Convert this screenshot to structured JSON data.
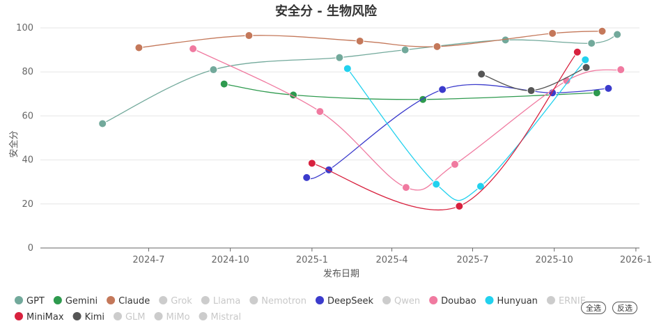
{
  "chart_data": {
    "type": "line",
    "title": "安全分 - 生物风险",
    "xlabel": "发布日期",
    "ylabel": "安全分",
    "ylim": [
      0,
      100
    ],
    "yticks": [
      0,
      20,
      40,
      60,
      80,
      100
    ],
    "xlim": [
      "2024-03-01",
      "2026-01-05"
    ],
    "xticks": [
      {
        "date": "2024-07-01",
        "label": "2024-7"
      },
      {
        "date": "2024-10-01",
        "label": "2024-10"
      },
      {
        "date": "2025-01-01",
        "label": "2025-1"
      },
      {
        "date": "2025-04-01",
        "label": "2025-4"
      },
      {
        "date": "2025-07-01",
        "label": "2025-7"
      },
      {
        "date": "2025-10-01",
        "label": "2025-10"
      },
      {
        "date": "2026-01-01",
        "label": "2026-1"
      }
    ],
    "series": [
      {
        "name": "GPT",
        "color": "#72a99b",
        "active": true,
        "points": [
          {
            "x": "2024-05-10",
            "y": 56.5
          },
          {
            "x": "2024-09-12",
            "y": 81
          },
          {
            "x": "2025-02-01",
            "y": 86.5
          },
          {
            "x": "2025-04-16",
            "y": 90
          },
          {
            "x": "2025-08-07",
            "y": 94.5
          },
          {
            "x": "2025-11-12",
            "y": 93
          },
          {
            "x": "2025-12-11",
            "y": 97
          }
        ]
      },
      {
        "name": "Gemini",
        "color": "#2e9a4e",
        "active": true,
        "points": [
          {
            "x": "2024-09-24",
            "y": 74.5
          },
          {
            "x": "2024-12-11",
            "y": 69.5
          },
          {
            "x": "2025-05-06",
            "y": 67.5
          },
          {
            "x": "2025-11-18",
            "y": 70.5
          }
        ]
      },
      {
        "name": "Claude",
        "color": "#c4785a",
        "active": true,
        "points": [
          {
            "x": "2024-06-20",
            "y": 91
          },
          {
            "x": "2024-10-22",
            "y": 96.5
          },
          {
            "x": "2025-02-24",
            "y": 94
          },
          {
            "x": "2025-05-22",
            "y": 91.5
          },
          {
            "x": "2025-09-29",
            "y": 97.5
          },
          {
            "x": "2025-11-24",
            "y": 98.5
          }
        ]
      },
      {
        "name": "Grok",
        "color": "#c8c8c8",
        "active": false,
        "points": []
      },
      {
        "name": "Llama",
        "color": "#c8c8c8",
        "active": false,
        "points": []
      },
      {
        "name": "Nemotron",
        "color": "#c8c8c8",
        "active": false,
        "points": []
      },
      {
        "name": "DeepSeek",
        "color": "#3b3bcc",
        "active": true,
        "points": [
          {
            "x": "2024-12-26",
            "y": 32
          },
          {
            "x": "2025-01-20",
            "y": 35.5
          },
          {
            "x": "2025-05-28",
            "y": 72
          },
          {
            "x": "2025-09-29",
            "y": 70.5
          },
          {
            "x": "2025-12-01",
            "y": 72.5
          }
        ]
      },
      {
        "name": "Qwen",
        "color": "#c8c8c8",
        "active": false,
        "points": []
      },
      {
        "name": "Doubao",
        "color": "#f07aa0",
        "active": true,
        "points": [
          {
            "x": "2024-08-20",
            "y": 90.5
          },
          {
            "x": "2025-01-10",
            "y": 62
          },
          {
            "x": "2025-04-17",
            "y": 27.5
          },
          {
            "x": "2025-06-11",
            "y": 38
          },
          {
            "x": "2025-10-15",
            "y": 76
          },
          {
            "x": "2025-12-15",
            "y": 81
          }
        ]
      },
      {
        "name": "Hunyuan",
        "color": "#22d1ee",
        "active": true,
        "points": [
          {
            "x": "2025-02-10",
            "y": 81.5
          },
          {
            "x": "2025-05-21",
            "y": 29
          },
          {
            "x": "2025-07-10",
            "y": 28
          },
          {
            "x": "2025-11-05",
            "y": 85.5
          }
        ]
      },
      {
        "name": "ERNIE",
        "color": "#c8c8c8",
        "active": false,
        "points": []
      },
      {
        "name": "MiniMax",
        "color": "#d8213e",
        "active": true,
        "points": [
          {
            "x": "2025-01-01",
            "y": 38.5
          },
          {
            "x": "2025-06-16",
            "y": 19
          },
          {
            "x": "2025-10-27",
            "y": 89
          }
        ]
      },
      {
        "name": "Kimi",
        "color": "#555555",
        "active": true,
        "points": [
          {
            "x": "2025-07-11",
            "y": 79
          },
          {
            "x": "2025-09-05",
            "y": 71.5
          },
          {
            "x": "2025-11-06",
            "y": 82
          }
        ]
      },
      {
        "name": "GLM",
        "color": "#c8c8c8",
        "active": false,
        "points": []
      },
      {
        "name": "MiMo",
        "color": "#c8c8c8",
        "active": false,
        "points": []
      },
      {
        "name": "Mistral",
        "color": "#c8c8c8",
        "active": false,
        "points": []
      }
    ]
  },
  "controls": {
    "select_all": "全选",
    "invert": "反选"
  }
}
